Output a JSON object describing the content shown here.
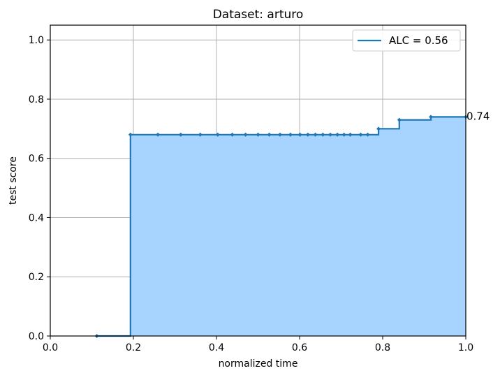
{
  "chart_data": {
    "type": "line",
    "title": "Dataset: arturo",
    "xlabel": "normalized time",
    "ylabel": "test score",
    "xlim": [
      0.0,
      1.0
    ],
    "ylim": [
      0.0,
      1.05
    ],
    "xticks": [
      "0.0",
      "0.2",
      "0.4",
      "0.6",
      "0.8",
      "1.0"
    ],
    "yticks": [
      "0.0",
      "0.2",
      "0.4",
      "0.6",
      "0.8",
      "1.0"
    ],
    "grid": true,
    "legend_position": "top-right",
    "series": [
      {
        "name": "ALC = 0.56",
        "step": "post",
        "fill": true,
        "x": [
          0.112,
          0.193,
          0.259,
          0.314,
          0.361,
          0.403,
          0.438,
          0.47,
          0.5,
          0.527,
          0.553,
          0.578,
          0.601,
          0.62,
          0.638,
          0.656,
          0.674,
          0.691,
          0.707,
          0.722,
          0.747,
          0.764,
          0.79,
          0.84,
          0.916,
          1.0
        ],
        "y": [
          0.0,
          0.68,
          0.68,
          0.68,
          0.68,
          0.68,
          0.68,
          0.68,
          0.68,
          0.68,
          0.68,
          0.68,
          0.68,
          0.68,
          0.68,
          0.68,
          0.68,
          0.68,
          0.68,
          0.68,
          0.68,
          0.68,
          0.7,
          0.73,
          0.74,
          0.74
        ]
      }
    ],
    "annotations": [
      {
        "text": "0.74",
        "x": 1.0,
        "y": 0.74
      }
    ],
    "colors": {
      "line": "#1f77b4",
      "fill": "#a7d3ff",
      "grid": "#b0b0b0"
    }
  }
}
